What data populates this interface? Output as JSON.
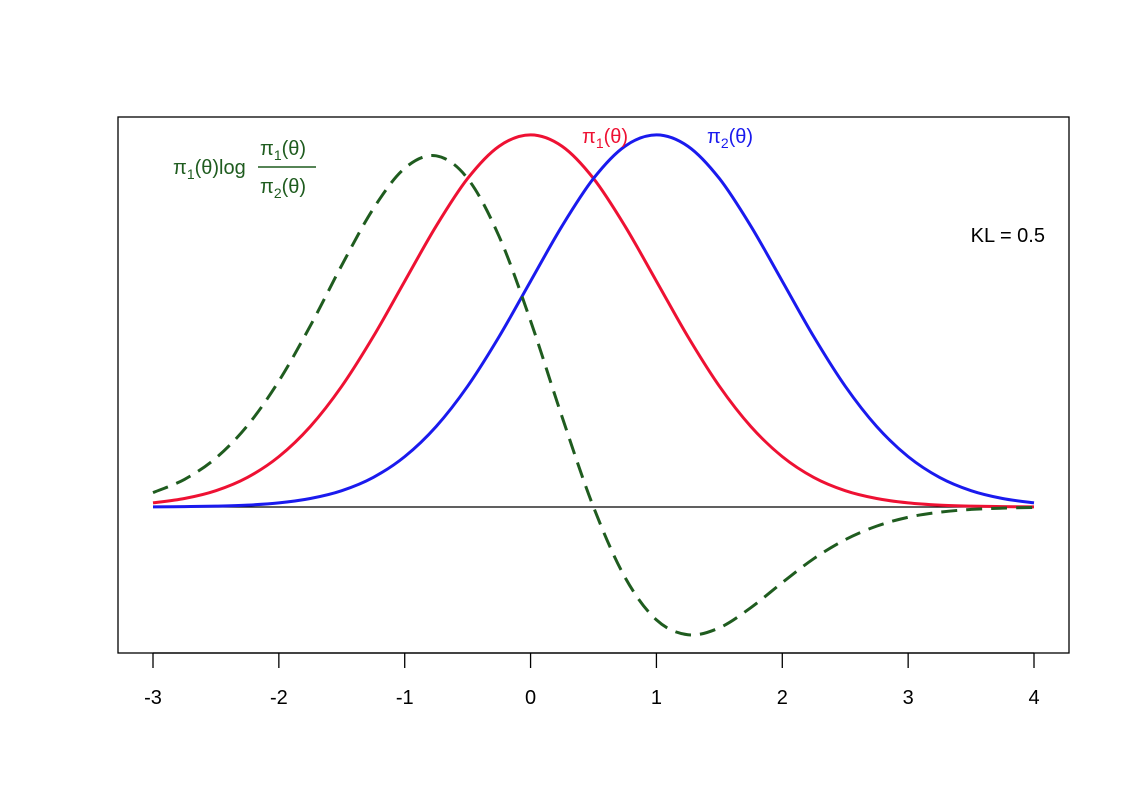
{
  "chart_data": {
    "type": "line",
    "title": "",
    "xlabel": "",
    "ylabel": "",
    "xlim": [
      -3.15,
      4.3
    ],
    "ylim": [
      -0.2,
      0.55
    ],
    "grid": false,
    "x_ticks": [
      -3,
      -2,
      -1,
      0,
      1,
      2,
      3,
      4
    ],
    "x_tick_labels": [
      "-3",
      "-2",
      "-1",
      "0",
      "1",
      "2",
      "3",
      "4"
    ],
    "colors": {
      "pi1": "#ee1133",
      "pi2": "#1a1aee",
      "integrand": "#1f5c1f",
      "zero_line": "#000000"
    },
    "series": [
      {
        "key": "pi1",
        "label_main": "π",
        "label_sub": "1",
        "label_tail": "(θ)",
        "style": "solid",
        "x": [
          -3,
          -2.75,
          -2.5,
          -2.25,
          -2,
          -1.75,
          -1.5,
          -1.25,
          -1,
          -0.75,
          -0.5,
          -0.25,
          0,
          0.25,
          0.5,
          0.75,
          1,
          1.25,
          1.5,
          1.75,
          2,
          2.25,
          2.5,
          2.75,
          3,
          3.25,
          3.5,
          3.75,
          4
        ],
        "y": [
          0.0044,
          0.0091,
          0.0175,
          0.0317,
          0.054,
          0.0863,
          0.1295,
          0.1826,
          0.242,
          0.3011,
          0.3521,
          0.3867,
          0.3989,
          0.3867,
          0.3521,
          0.3011,
          0.242,
          0.1826,
          0.1295,
          0.0863,
          0.054,
          0.0317,
          0.0175,
          0.0091,
          0.0044,
          0.002,
          0.0009,
          0.0004,
          0.0001
        ]
      },
      {
        "key": "pi2",
        "label_main": "π",
        "label_sub": "2",
        "label_tail": "(θ)",
        "style": "solid",
        "x": [
          -3,
          -2.75,
          -2.5,
          -2.25,
          -2,
          -1.75,
          -1.5,
          -1.25,
          -1,
          -0.75,
          -0.5,
          -0.25,
          0,
          0.25,
          0.5,
          0.75,
          1,
          1.25,
          1.5,
          1.75,
          2,
          2.25,
          2.5,
          2.75,
          3,
          3.25,
          3.5,
          3.75,
          4
        ],
        "y": [
          0.0001,
          0.0004,
          0.0009,
          0.002,
          0.0044,
          0.0091,
          0.0175,
          0.0317,
          0.054,
          0.0863,
          0.1295,
          0.1826,
          0.242,
          0.3011,
          0.3521,
          0.3867,
          0.3989,
          0.3867,
          0.3521,
          0.3011,
          0.242,
          0.1826,
          0.1295,
          0.0863,
          0.054,
          0.0317,
          0.0175,
          0.0091,
          0.0044
        ]
      },
      {
        "key": "integrand",
        "label_main": "π",
        "label_sub": "1",
        "label_tail": "(θ)log",
        "frac_num": "(θ)",
        "frac_den": "(θ)",
        "frac_num_sub": "1",
        "frac_den_sub": "2",
        "style": "dashed",
        "x": [
          -3,
          -2.75,
          -2.5,
          -2.25,
          -2,
          -1.75,
          -1.5,
          -1.25,
          -1,
          -0.75,
          -0.5,
          -0.25,
          0,
          0.25,
          0.5,
          0.75,
          1,
          1.25,
          1.5,
          1.75,
          2,
          2.25,
          2.5,
          2.75,
          3,
          3.25,
          3.5,
          3.75,
          4
        ],
        "y": [
          0.0154,
          0.0296,
          0.0525,
          0.0872,
          0.135,
          0.1942,
          0.2591,
          0.3196,
          0.3631,
          0.3764,
          0.3521,
          0.29,
          0.1995,
          0.0967,
          0,
          -0.0753,
          -0.121,
          -0.1369,
          -0.1295,
          -0.1079,
          -0.081,
          -0.0554,
          -0.035,
          -0.0205,
          -0.011,
          -0.0056,
          -0.0026,
          -0.0012,
          -0.0005
        ]
      }
    ],
    "annotation": "KL = 0.5"
  }
}
